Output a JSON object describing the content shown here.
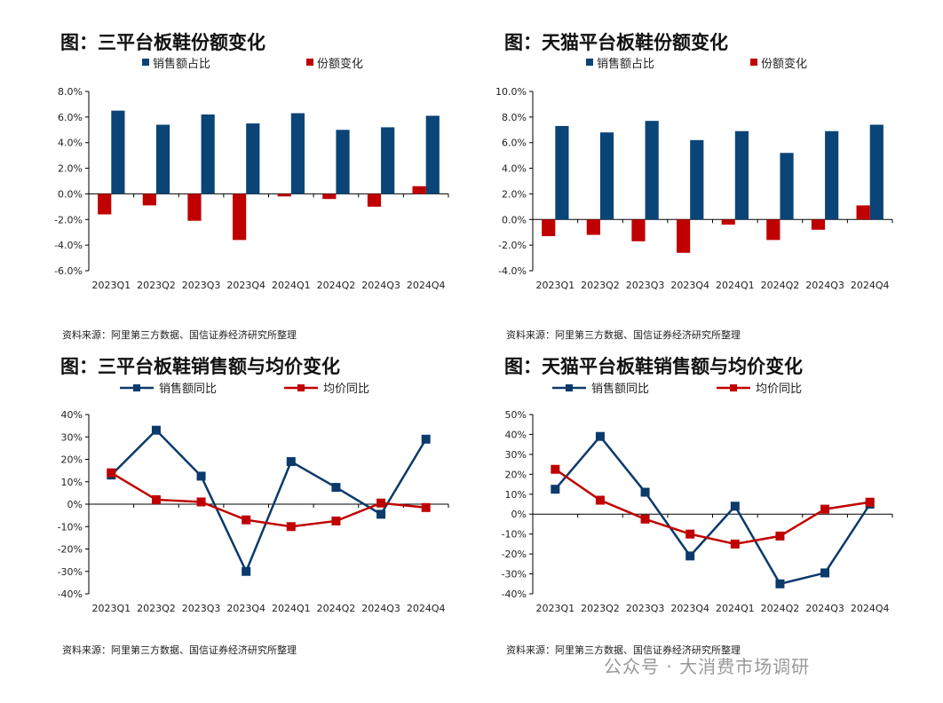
{
  "chart_data": [
    {
      "type": "bar",
      "title": "图：三平台板鞋份额变化",
      "source": "资料来源：阿里第三方数据、国信证券经济研究所整理",
      "categories": [
        "2023Q1",
        "2023Q2",
        "2023Q3",
        "2023Q4",
        "2024Q1",
        "2024Q2",
        "2024Q3",
        "2024Q4"
      ],
      "ylim": [
        -6,
        8
      ],
      "ystep": 2,
      "ytick_format": "%.1f%",
      "series": [
        {
          "name": "销售额占比",
          "color": "#0b4477",
          "values": [
            6.5,
            5.4,
            6.2,
            5.5,
            6.3,
            5.0,
            5.2,
            6.1
          ]
        },
        {
          "name": "份额变化",
          "color": "#c00000",
          "values": [
            -1.6,
            -0.9,
            -2.1,
            -3.6,
            -0.2,
            -0.4,
            -1.0,
            0.6
          ]
        }
      ]
    },
    {
      "type": "bar",
      "title": "图：天猫平台板鞋份额变化",
      "source": "资料来源：阿里第三方数据、国信证券经济研究所整理",
      "categories": [
        "2023Q1",
        "2023Q2",
        "2023Q3",
        "2023Q4",
        "2024Q1",
        "2024Q2",
        "2024Q3",
        "2024Q4"
      ],
      "ylim": [
        -4,
        10
      ],
      "ystep": 2,
      "ytick_format": "%.1f%",
      "series": [
        {
          "name": "销售额占比",
          "color": "#0b4477",
          "values": [
            7.3,
            6.8,
            7.7,
            6.2,
            6.9,
            5.2,
            6.9,
            7.4
          ]
        },
        {
          "name": "份额变化",
          "color": "#c00000",
          "values": [
            -1.3,
            -1.2,
            -1.7,
            -2.6,
            -0.4,
            -1.6,
            -0.8,
            1.1
          ]
        }
      ]
    },
    {
      "type": "line",
      "title": "图：三平台板鞋销售额与均价变化",
      "source": "资料来源：阿里第三方数据、国信证券经济研究所整理",
      "categories": [
        "2023Q1",
        "2023Q2",
        "2023Q3",
        "2023Q4",
        "2024Q1",
        "2024Q2",
        "2024Q3",
        "2024Q4"
      ],
      "ylim": [
        -40,
        40
      ],
      "ystep": 10,
      "ytick_format": "%d%",
      "series": [
        {
          "name": "销售额同比",
          "color": "#0b3a6b",
          "values": [
            13,
            33,
            12.5,
            -30,
            19,
            7.5,
            -4.5,
            29
          ]
        },
        {
          "name": "均价同比",
          "color": "#c00000",
          "values": [
            14,
            2,
            1,
            -7,
            -10,
            -7.5,
            0.5,
            -1.5
          ]
        }
      ]
    },
    {
      "type": "line",
      "title": "图：天猫平台板鞋销售额与均价变化",
      "source": "资料来源：阿里第三方数据、国信证券经济研究所整理",
      "categories": [
        "2023Q1",
        "2023Q2",
        "2023Q3",
        "2023Q4",
        "2024Q1",
        "2024Q2",
        "2024Q3",
        "2024Q4"
      ],
      "ylim": [
        -40,
        50
      ],
      "ystep": 10,
      "ytick_format": "%d%",
      "series": [
        {
          "name": "销售额同比",
          "color": "#0b3a6b",
          "values": [
            12.5,
            39,
            11,
            -21,
            4,
            -35,
            -29.5,
            5
          ]
        },
        {
          "name": "均价同比",
          "color": "#c00000",
          "values": [
            22.5,
            7,
            -2.5,
            -10,
            -15,
            -11,
            2.5,
            6
          ]
        }
      ]
    }
  ],
  "watermark": "公众号 · 大消费市场调研"
}
